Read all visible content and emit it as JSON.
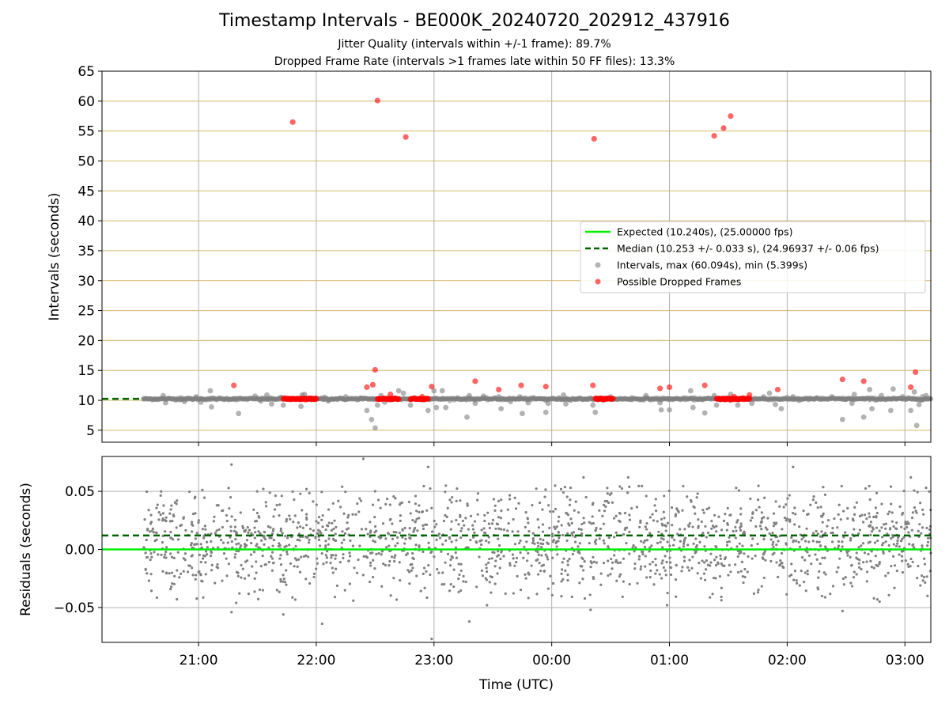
{
  "title": "Timestamp Intervals - BE000K_20240720_202912_437916",
  "subtitle_lines": [
    "Jitter Quality (intervals within +/-1 frame): 89.7%",
    "Dropped Frame Rate (intervals >1 frames late within 50 FF files): 13.3%"
  ],
  "colors": {
    "expected": "#00ee00",
    "median": "#006400",
    "intervals": "#808080",
    "dropped": "#ff0000",
    "frame_grid": "#d4b86a",
    "grid": "#b0b0b0"
  },
  "chart_data": [
    {
      "type": "scatter",
      "panel": "top",
      "xlabel": "",
      "ylabel": "Intervals (seconds)",
      "x_units": "hours since 00:00 UTC (time of day)",
      "xlim": [
        -3.82,
        3.22
      ],
      "ylim": [
        3,
        65
      ],
      "yticks": [
        5,
        10,
        15,
        20,
        25,
        30,
        35,
        40,
        45,
        50,
        55,
        60,
        65
      ],
      "legend_position": "center-right",
      "legend": [
        "Expected (10.240s), (25.00000 fps)",
        "Median (10.253 +/- 0.033 s), (24.96937 +/- 0.06 fps)",
        "Intervals, max (60.094s), min (5.399s)",
        "Possible Dropped Frames"
      ],
      "lines": {
        "expected": 10.24,
        "median": 10.253
      },
      "series": [
        {
          "name": "Intervals, max (60.094s), min (5.399s)",
          "note": "dense band around 10.24 s plus visible outliers",
          "band": {
            "x_start": -3.47,
            "x_end": 3.22,
            "y": 10.24
          },
          "points": [
            [
              -3.3,
              10.8
            ],
            [
              -3.28,
              9.6
            ],
            [
              -3.15,
              10.4
            ],
            [
              -3.12,
              9.8
            ],
            [
              -3.02,
              10.6
            ],
            [
              -2.98,
              9.7
            ],
            [
              -2.9,
              11.6
            ],
            [
              -2.89,
              8.9
            ],
            [
              -2.7,
              10.3
            ],
            [
              -2.66,
              7.8
            ],
            [
              -2.52,
              10.7
            ],
            [
              -2.47,
              9.9
            ],
            [
              -2.42,
              10.9
            ],
            [
              -2.38,
              9.4
            ],
            [
              -2.3,
              10.5
            ],
            [
              -2.28,
              9.2
            ],
            [
              -2.12,
              10.9
            ],
            [
              -2.1,
              11.0
            ],
            [
              -2.13,
              9.0
            ],
            [
              -1.93,
              10.5
            ],
            [
              -1.9,
              9.9
            ],
            [
              -1.75,
              10.6
            ],
            [
              -1.62,
              10.4
            ],
            [
              -1.45,
              10.8
            ],
            [
              -1.42,
              9.7
            ],
            [
              -1.57,
              8.3
            ],
            [
              -1.53,
              6.8
            ],
            [
              -1.5,
              5.4
            ],
            [
              -1.48,
              9.2
            ],
            [
              -1.3,
              11.6
            ],
            [
              -1.26,
              11.2
            ],
            [
              -1.2,
              9.2
            ],
            [
              -1.05,
              8.3
            ],
            [
              -1.0,
              11.6
            ],
            [
              -0.98,
              8.8
            ],
            [
              -0.93,
              11.6
            ],
            [
              -0.9,
              8.8
            ],
            [
              -0.8,
              10.4
            ],
            [
              -0.72,
              7.2
            ],
            [
              -0.7,
              10.8
            ],
            [
              -0.65,
              9.5
            ],
            [
              -0.58,
              10.7
            ],
            [
              -0.45,
              10.6
            ],
            [
              -0.43,
              8.6
            ],
            [
              -0.35,
              9.8
            ],
            [
              -0.27,
              10.6
            ],
            [
              -0.25,
              7.8
            ],
            [
              -0.2,
              9.6
            ],
            [
              -0.05,
              10.0
            ],
            [
              -0.05,
              8.0
            ],
            [
              -0.03,
              9.5
            ],
            [
              0.1,
              10.9
            ],
            [
              0.12,
              9.4
            ],
            [
              0.25,
              10.3
            ],
            [
              0.35,
              9.2
            ],
            [
              0.37,
              8.0
            ],
            [
              0.5,
              10.6
            ],
            [
              0.68,
              10.4
            ],
            [
              0.8,
              10.8
            ],
            [
              0.92,
              9.6
            ],
            [
              0.93,
              8.4
            ],
            [
              1.0,
              10.2
            ],
            [
              1.0,
              8.4
            ],
            [
              1.18,
              11.6
            ],
            [
              1.2,
              8.8
            ],
            [
              1.3,
              7.9
            ],
            [
              1.38,
              10.8
            ],
            [
              1.4,
              9.2
            ],
            [
              1.52,
              11.0
            ],
            [
              1.58,
              9.2
            ],
            [
              1.7,
              9.5
            ],
            [
              1.8,
              10.6
            ],
            [
              1.85,
              11.2
            ],
            [
              1.9,
              9.3
            ],
            [
              1.95,
              8.6
            ],
            [
              2.05,
              10.6
            ],
            [
              2.1,
              10.0
            ],
            [
              2.25,
              10.4
            ],
            [
              2.38,
              10.6
            ],
            [
              2.47,
              6.8
            ],
            [
              2.5,
              10.2
            ],
            [
              2.55,
              9.5
            ],
            [
              2.57,
              11.0
            ],
            [
              2.65,
              7.2
            ],
            [
              2.7,
              11.8
            ],
            [
              2.72,
              8.6
            ],
            [
              2.8,
              10.8
            ],
            [
              2.88,
              8.3
            ],
            [
              2.9,
              11.9
            ],
            [
              2.98,
              10.6
            ],
            [
              3.05,
              8.3
            ],
            [
              3.08,
              11.4
            ],
            [
              3.1,
              5.8
            ],
            [
              3.12,
              9.3
            ],
            [
              3.15,
              10.6
            ],
            [
              3.18,
              10.8
            ]
          ]
        },
        {
          "name": "Possible Dropped Frames",
          "clusters": [
            {
              "x_start": -2.28,
              "x_end": -2.0,
              "y": 10.25
            },
            {
              "x_start": -1.48,
              "x_end": -1.3,
              "y": 10.25
            },
            {
              "x_start": -1.2,
              "x_end": -1.05,
              "y": 10.25
            },
            {
              "x_start": 0.37,
              "x_end": 0.52,
              "y": 10.25
            },
            {
              "x_start": 1.4,
              "x_end": 1.68,
              "y": 10.25
            }
          ],
          "points": [
            [
              -2.7,
              12.5
            ],
            [
              -2.2,
              56.5
            ],
            [
              -1.57,
              12.2
            ],
            [
              -1.52,
              12.6
            ],
            [
              -1.5,
              15.1
            ],
            [
              -1.48,
              60.1
            ],
            [
              -1.37,
              11.0
            ],
            [
              -1.24,
              54.0
            ],
            [
              -1.1,
              10.6
            ],
            [
              -1.02,
              12.3
            ],
            [
              -0.65,
              13.2
            ],
            [
              -0.45,
              11.8
            ],
            [
              -0.26,
              12.5
            ],
            [
              -0.05,
              12.3
            ],
            [
              0.35,
              12.5
            ],
            [
              0.36,
              53.7
            ],
            [
              0.92,
              12.0
            ],
            [
              1.0,
              12.2
            ],
            [
              1.3,
              12.5
            ],
            [
              1.38,
              54.2
            ],
            [
              1.46,
              55.5
            ],
            [
              1.52,
              57.5
            ],
            [
              1.55,
              10.6
            ],
            [
              1.68,
              10.9
            ],
            [
              1.92,
              11.8
            ],
            [
              2.47,
              13.5
            ],
            [
              2.65,
              13.2
            ],
            [
              3.05,
              12.2
            ],
            [
              3.09,
              14.7
            ]
          ]
        }
      ]
    },
    {
      "type": "scatter",
      "panel": "bottom",
      "xlabel": "Time (UTC)",
      "ylabel": "Residuals (seconds)",
      "x_units": "hours since 00:00 UTC (time of day)",
      "xlim": [
        -3.82,
        3.22
      ],
      "ylim": [
        -0.08,
        0.08
      ],
      "yticks": [
        -0.05,
        0.0,
        0.05
      ],
      "ytick_labels": [
        "−0.05",
        "0.00",
        "0.05"
      ],
      "xticks": [
        -3,
        -2,
        -1,
        0,
        1,
        2,
        3
      ],
      "xtick_labels": [
        "21:00",
        "22:00",
        "23:00",
        "00:00",
        "01:00",
        "02:00",
        "03:00"
      ],
      "lines": {
        "expected": 0.0,
        "median": 0.012
      },
      "series": [
        {
          "name": "Residuals",
          "note": "dense scatter of ~1800 residuals between -0.04 and +0.05 s from -3.47 h to 3.22 h",
          "x_range": [
            -3.47,
            3.22
          ],
          "y_center": 0.006,
          "y_spread": 0.022,
          "count": 1800,
          "outliers": [
            [
              -2.72,
              0.073
            ],
            [
              -2.72,
              -0.054
            ],
            [
              -2.68,
              -0.046
            ],
            [
              -2.45,
              0.052
            ],
            [
              -2.28,
              -0.056
            ],
            [
              -1.95,
              -0.064
            ],
            [
              -1.78,
              0.054
            ],
            [
              -1.6,
              0.078
            ],
            [
              -1.05,
              0.071
            ],
            [
              -1.02,
              -0.077
            ],
            [
              -0.7,
              -0.062
            ],
            [
              -0.55,
              -0.048
            ],
            [
              -0.25,
              -0.081
            ],
            [
              0.27,
              0.062
            ],
            [
              0.33,
              -0.052
            ],
            [
              0.65,
              0.062
            ],
            [
              0.98,
              -0.048
            ],
            [
              2.05,
              0.071
            ],
            [
              2.47,
              -0.053
            ],
            [
              3.05,
              0.062
            ],
            [
              3.18,
              0.053
            ]
          ]
        }
      ]
    }
  ]
}
